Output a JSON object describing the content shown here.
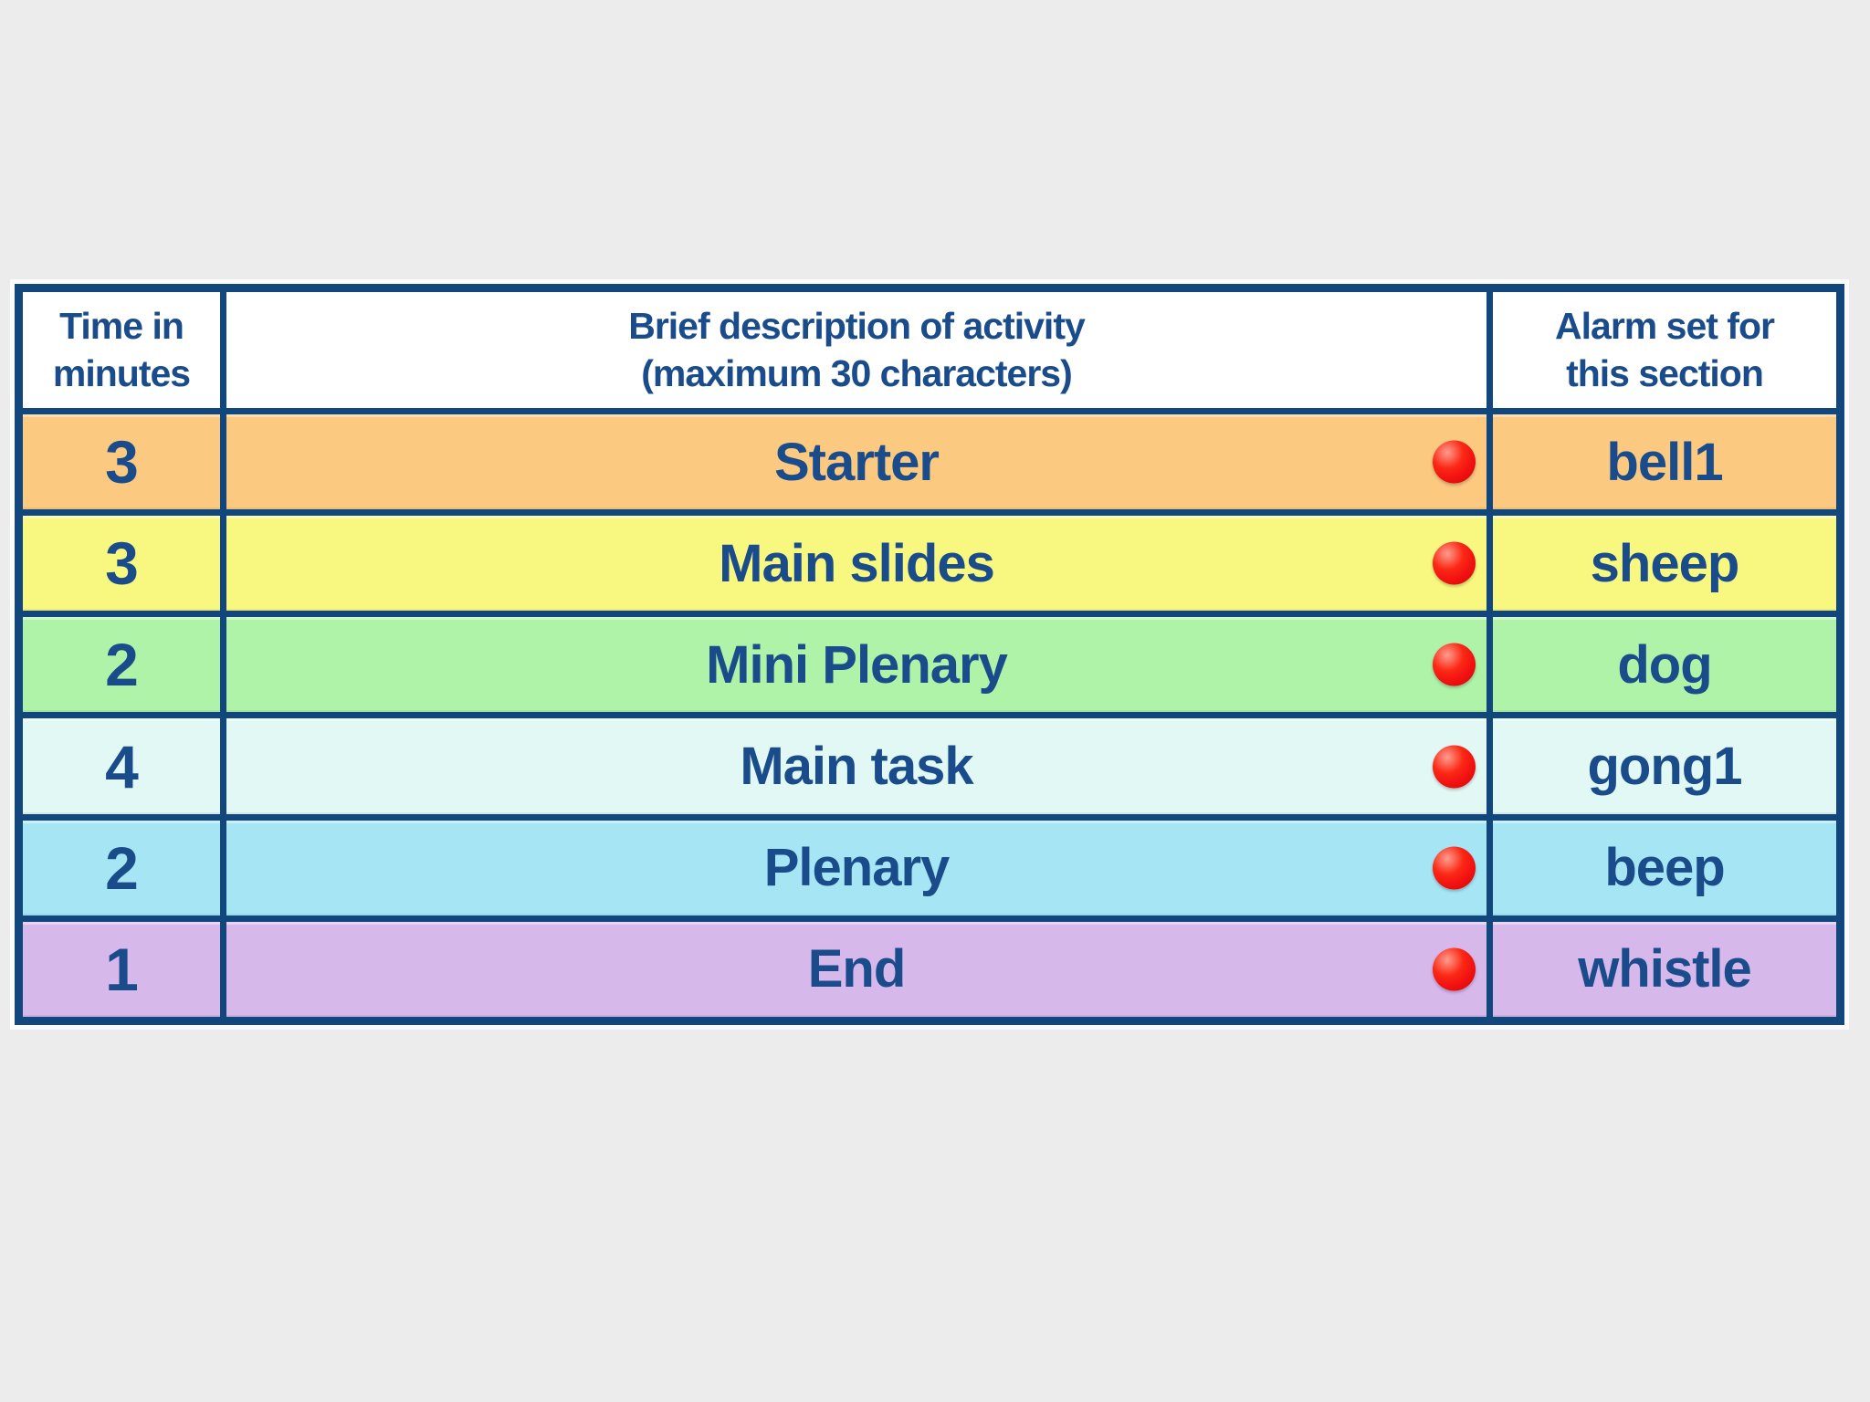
{
  "page": {
    "background_color": "#ECECEC"
  },
  "table": {
    "border_color": "#12477D",
    "text_color": "#1A4C8C",
    "header_background": "#FFFFFF",
    "alarm_dot_color": "#F21212",
    "headers": {
      "time": "Time in\nminutes",
      "description": "Brief description of activity\n(maximum 30 characters)",
      "alarm": "Alarm set for\nthis section"
    },
    "rows": [
      {
        "time_minutes": "3",
        "description": "Starter",
        "alarm": "bell1",
        "row_color": "#FBC97F"
      },
      {
        "time_minutes": "3",
        "description": "Main slides",
        "alarm": "sheep",
        "row_color": "#F8F881"
      },
      {
        "time_minutes": "2",
        "description": "Mini Plenary",
        "alarm": "dog",
        "row_color": "#AFF3A8"
      },
      {
        "time_minutes": "4",
        "description": "Main task",
        "alarm": "gong1",
        "row_color": "#E2F8F4"
      },
      {
        "time_minutes": "2",
        "description": "Plenary",
        "alarm": "beep",
        "row_color": "#A6E6F4"
      },
      {
        "time_minutes": "1",
        "description": "End",
        "alarm": "whistle",
        "row_color": "#D6B8EB"
      }
    ]
  }
}
